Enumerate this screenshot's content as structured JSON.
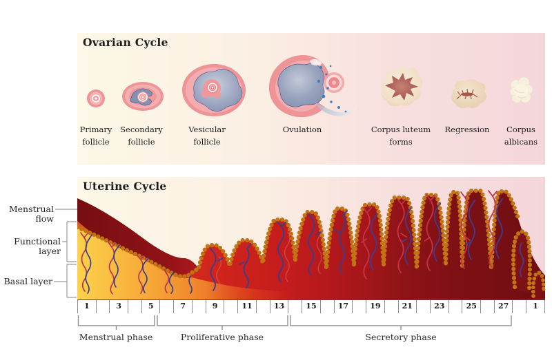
{
  "ovarian": {
    "title": "Ovarian Cycle",
    "stages": [
      {
        "line1": "Primary",
        "line2": "follicle"
      },
      {
        "line1": "Secondary",
        "line2": "follicle"
      },
      {
        "line1": "Vesicular",
        "line2": "follicle"
      },
      {
        "line1": "Ovulation",
        "line2": ""
      },
      {
        "line1": "Corpus luteum",
        "line2": "forms"
      },
      {
        "line1": "Regression",
        "line2": ""
      },
      {
        "line1": "Corpus",
        "line2": "albicans"
      }
    ]
  },
  "uterine": {
    "title": "Uterine Cycle",
    "layer_labels": {
      "menstrual_flow": "Menstrual flow",
      "functional_layer": "Functional layer",
      "basal_layer": "Basal layer"
    },
    "day_numbers": [
      "1",
      "3",
      "5",
      "7",
      "9",
      "11",
      "13",
      "15",
      "17",
      "19",
      "21",
      "23",
      "25",
      "27",
      "1"
    ],
    "phases": {
      "menstrual": "Menstrual phase",
      "proliferative": "Proliferative phase",
      "secretory": "Secretory phase"
    }
  },
  "colors": {
    "panel_cream": "#FDF8E8",
    "panel_pink": "#F5D7DB",
    "endometrium_bright_red": "#C41C1C",
    "endometrium_maroon": "#700E12",
    "menstrual_wedge": "#7A0F14",
    "basal_yellow": "#FCD24B",
    "bead_orange": "#F5A43B",
    "vessel_red": "#BE3450",
    "vessel_blue": "#343F94",
    "follicle_pink": "#EE9396",
    "antrum_blue_gray": "#8792B2",
    "corpus_luteum_cream": "#F3E2CD",
    "corpus_luteum_rose": "#A35048"
  }
}
